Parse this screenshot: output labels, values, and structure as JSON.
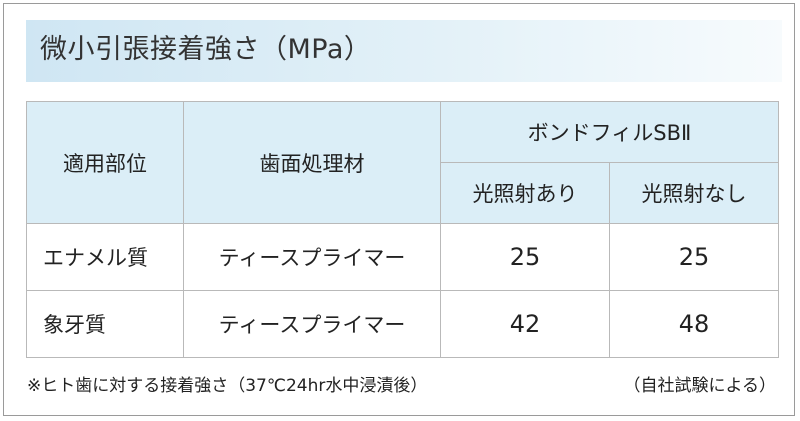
{
  "title": "微小引張接着強さ（MPa）",
  "table": {
    "headers": {
      "site": "適用部位",
      "treatment": "歯面処理材",
      "product": "ボンドフィルSBⅡ",
      "with_light": "光照射あり",
      "without_light": "光照射なし"
    },
    "rows": [
      {
        "site": "エナメル質",
        "treatment": "ティースプライマー",
        "with_light": "25",
        "without_light": "25"
      },
      {
        "site": "象牙質",
        "treatment": "ティースプライマー",
        "with_light": "42",
        "without_light": "48"
      }
    ]
  },
  "footnote": "※ヒト歯に対する接着強さ（37℃24hr水中浸漬後）",
  "source": "（自社試験による）"
}
